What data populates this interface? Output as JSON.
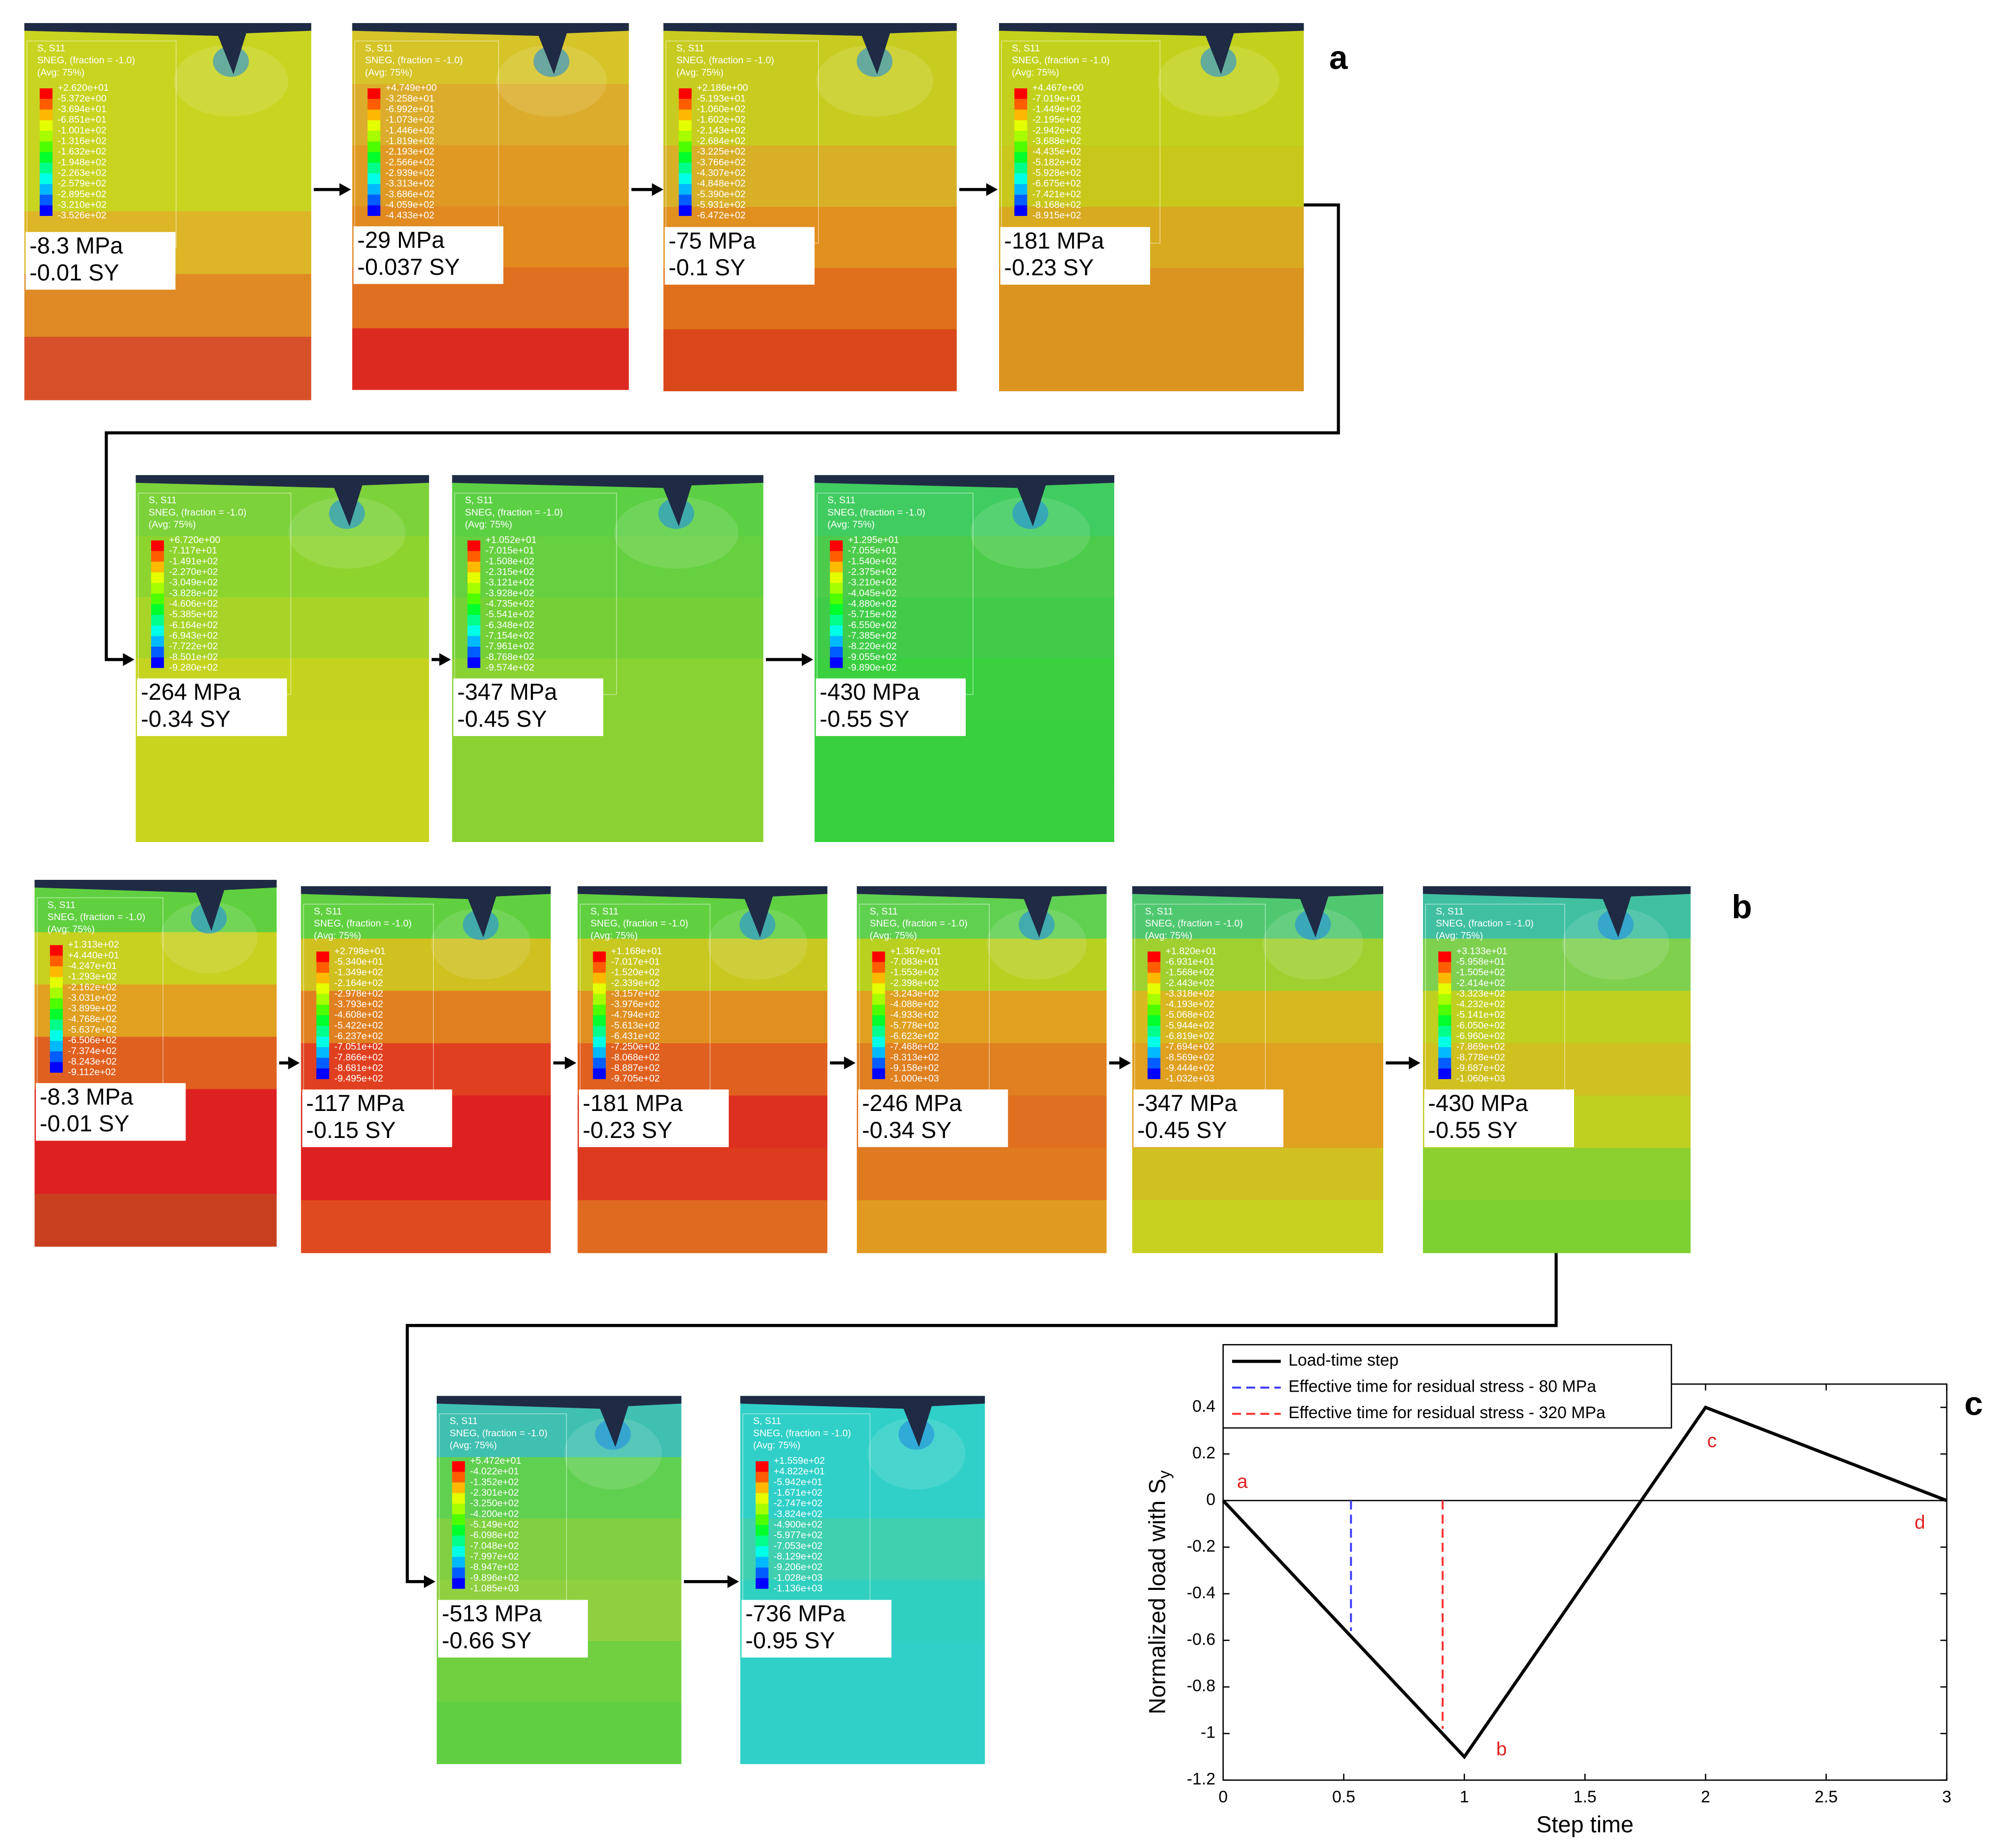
{
  "legend_header": [
    "S, S11",
    "SNEG, (fraction = -1.0)",
    "(Avg: 75%)"
  ],
  "legend_colors": [
    "#ff0000",
    "#ff5d00",
    "#ffb900",
    "#e4ff00",
    "#a6ff00",
    "#4dff00",
    "#00ff2b",
    "#00ff8a",
    "#00ffe6",
    "#00b9ff",
    "#005dff",
    "#0000ff"
  ],
  "panel_letters": [
    "a",
    "b",
    "c"
  ],
  "panels_a": [
    {
      "legend": [
        "+2.620e+01",
        "-5.372e+00",
        "-3.694e+01",
        "-6.851e+01",
        "-1.001e+02",
        "-1.316e+02",
        "-1.632e+02",
        "-1.948e+02",
        "-2.263e+02",
        "-2.579e+02",
        "-2.895e+02",
        "-3.210e+02",
        "-3.526e+02"
      ],
      "label": [
        "-8.3 MPa",
        "-0.01 SY"
      ],
      "bands": [
        "#c9d420",
        "#c9d420",
        "#c9d420",
        "#dcb626",
        "#e08a25",
        "#d8502a"
      ]
    },
    {
      "legend": [
        "+4.749e+00",
        "-3.258e+01",
        "-6.992e+01",
        "-1.073e+02",
        "-1.446e+02",
        "-1.819e+02",
        "-2.193e+02",
        "-2.566e+02",
        "-2.939e+02",
        "-3.313e+02",
        "-3.686e+02",
        "-4.059e+02",
        "-4.433e+02"
      ],
      "label": [
        "-29 MPa",
        "-0.037 SY"
      ],
      "bands": [
        "#d6c428",
        "#dcac2c",
        "#e09a24",
        "#e08a20",
        "#e07020",
        "#dd2a20"
      ]
    },
    {
      "legend": [
        "+2.186e+00",
        "-5.193e+01",
        "-1.060e+02",
        "-1.602e+02",
        "-2.143e+02",
        "-2.684e+02",
        "-3.225e+02",
        "-3.766e+02",
        "-4.307e+02",
        "-4.848e+02",
        "-5.390e+02",
        "-5.931e+02",
        "-6.472e+02"
      ],
      "label": [
        "-75 MPa",
        "-0.1 SY"
      ],
      "bands": [
        "#c8cc20",
        "#c8cc20",
        "#d8b028",
        "#e0901e",
        "#e0701c",
        "#d84818"
      ]
    },
    {
      "legend": [
        "+4.467e+00",
        "-7.019e+01",
        "-1.449e+02",
        "-2.195e+02",
        "-2.942e+02",
        "-3.688e+02",
        "-4.435e+02",
        "-5.182e+02",
        "-5.928e+02",
        "-6.675e+02",
        "-7.421e+02",
        "-8.168e+02",
        "-8.915e+02"
      ],
      "label": [
        "-181 MPa",
        "-0.23 SY"
      ],
      "bands": [
        "#c2d21c",
        "#c2d21c",
        "#c8c81c",
        "#d8aa20",
        "#dc9420",
        "#dc9420"
      ]
    },
    {
      "legend": [
        "+6.720e+00",
        "-7.117e+01",
        "-1.491e+02",
        "-2.270e+02",
        "-3.049e+02",
        "-3.828e+02",
        "-4.606e+02",
        "-5.385e+02",
        "-6.164e+02",
        "-6.943e+02",
        "-7.722e+02",
        "-8.501e+02",
        "-9.280e+02"
      ],
      "label": [
        "-264 MPa",
        "-0.34 SY"
      ],
      "bands": [
        "#7cd23a",
        "#8ed42e",
        "#a8d428",
        "#c4d41e",
        "#c8d41e",
        "#c8d41e"
      ]
    },
    {
      "legend": [
        "+1.052e+01",
        "-7.015e+01",
        "-1.508e+02",
        "-2.315e+02",
        "-3.121e+02",
        "-3.928e+02",
        "-4.735e+02",
        "-5.541e+02",
        "-6.348e+02",
        "-7.154e+02",
        "-7.961e+02",
        "-8.768e+02",
        "-9.574e+02"
      ],
      "label": [
        "-347 MPa",
        "-0.45 SY"
      ],
      "bands": [
        "#5cd044",
        "#66d040",
        "#74d036",
        "#88d232",
        "#8ad232",
        "#8ad232"
      ]
    },
    {
      "legend": [
        "+1.295e+01",
        "-7.055e+01",
        "-1.540e+02",
        "-2.375e+02",
        "-3.210e+02",
        "-4.045e+02",
        "-4.880e+02",
        "-5.715e+02",
        "-6.550e+02",
        "-7.385e+02",
        "-8.220e+02",
        "-9.055e+02",
        "-9.890e+02"
      ],
      "label": [
        "-430 MPa",
        "-0.55 SY"
      ],
      "bands": [
        "#40cc60",
        "#4ccc4a",
        "#40cc48",
        "#3ad040",
        "#38d03c",
        "#38d03c"
      ]
    }
  ],
  "panels_b": [
    {
      "legend": [
        "+1.313e+02",
        "+4.440e+01",
        "-4.247e+01",
        "-1.293e+02",
        "-2.162e+02",
        "-3.031e+02",
        "-3.899e+02",
        "-4.768e+02",
        "-5.637e+02",
        "-6.506e+02",
        "-7.374e+02",
        "-8.243e+02",
        "-9.112e+02"
      ],
      "label": [
        "-8.3 MPa",
        "-0.01 SY"
      ],
      "bands": [
        "#60d040",
        "#c8d020",
        "#e0a020",
        "#e06020",
        "#dd2020",
        "#dd2020",
        "#c84020"
      ]
    },
    {
      "legend": [
        "+2.798e+01",
        "-5.340e+01",
        "-1.349e+02",
        "-2.164e+02",
        "-2.978e+02",
        "-3.793e+02",
        "-4.608e+02",
        "-5.422e+02",
        "-6.237e+02",
        "-7.051e+02",
        "-7.866e+02",
        "-8.681e+02",
        "-9.495e+02"
      ],
      "label": [
        "-117 MPa",
        "-0.15 SY"
      ],
      "bands": [
        "#60d040",
        "#d0c020",
        "#e08020",
        "#e04020",
        "#dd2020",
        "#dd2020",
        "#e04a20"
      ]
    },
    {
      "legend": [
        "+1.168e+01",
        "-7.017e+01",
        "-1.520e+02",
        "-2.339e+02",
        "-3.157e+02",
        "-3.976e+02",
        "-4.794e+02",
        "-5.613e+02",
        "-6.431e+02",
        "-7.250e+02",
        "-8.068e+02",
        "-8.887e+02",
        "-9.705e+02"
      ],
      "label": [
        "-181 MPa",
        "-0.23 SY"
      ],
      "bands": [
        "#60d040",
        "#c8c820",
        "#e09020",
        "#e06020",
        "#dd3020",
        "#dd3a20",
        "#e06a20"
      ]
    },
    {
      "legend": [
        "+1.367e+01",
        "-7.083e+01",
        "-1.553e+02",
        "-2.398e+02",
        "-3.243e+02",
        "-4.088e+02",
        "-4.933e+02",
        "-5.778e+02",
        "-6.623e+02",
        "-7.468e+02",
        "-8.313e+02",
        "-9.158e+02",
        "-1.000e+03"
      ],
      "label": [
        "-246 MPa",
        "-0.34 SY"
      ],
      "bands": [
        "#60d050",
        "#b8d020",
        "#e0a020",
        "#e08020",
        "#e07020",
        "#e07a20",
        "#e09a20"
      ]
    },
    {
      "legend": [
        "+1.820e+01",
        "-6.931e+01",
        "-1.568e+02",
        "-2.443e+02",
        "-3.318e+02",
        "-4.193e+02",
        "-5.068e+02",
        "-5.944e+02",
        "-6.819e+02",
        "-7.694e+02",
        "-8.569e+02",
        "-9.444e+02",
        "-1.032e+03"
      ],
      "label": [
        "-347 MPa",
        "-0.45 SY"
      ],
      "bands": [
        "#50c870",
        "#a0d030",
        "#d8b820",
        "#e0a020",
        "#e0a020",
        "#d0c020",
        "#c8d020"
      ]
    },
    {
      "legend": [
        "+3.133e+01",
        "-5.958e+01",
        "-1.505e+02",
        "-2.414e+02",
        "-3.323e+02",
        "-4.232e+02",
        "-5.141e+02",
        "-6.050e+02",
        "-6.960e+02",
        "-7.869e+02",
        "-8.778e+02",
        "-9.687e+02",
        "-1.060e+03"
      ],
      "label": [
        "-430 MPa",
        "-0.55 SY"
      ],
      "bands": [
        "#40c0a0",
        "#80d050",
        "#c0d020",
        "#d0c020",
        "#c0d020",
        "#8cd030",
        "#7cd030"
      ]
    },
    {
      "legend": [
        "+5.472e+01",
        "-4.022e+01",
        "-1.352e+02",
        "-2.301e+02",
        "-3.250e+02",
        "-4.200e+02",
        "-5.149e+02",
        "-6.098e+02",
        "-7.048e+02",
        "-7.997e+02",
        "-8.947e+02",
        "-9.896e+02",
        "-1.085e+03"
      ],
      "label": [
        "-513 MPa",
        "-0.66 SY"
      ],
      "bands": [
        "#40c0b0",
        "#60d050",
        "#80d040",
        "#90d040",
        "#70d040",
        "#60d040"
      ]
    },
    {
      "legend": [
        "+1.559e+02",
        "+4.822e+01",
        "-5.942e+01",
        "-1.671e+02",
        "-2.747e+02",
        "-3.824e+02",
        "-4.900e+02",
        "-5.977e+02",
        "-7.053e+02",
        "-8.129e+02",
        "-9.206e+02",
        "-1.028e+03",
        "-1.136e+03"
      ],
      "label": [
        "-736 MPa",
        "-0.95 SY"
      ],
      "bands": [
        "#30d0c8",
        "#30d0c8",
        "#40d0b0",
        "#30d0c0",
        "#30d0c8",
        "#30d0c8"
      ]
    }
  ],
  "chart_data": {
    "type": "line",
    "xlabel": "Step time",
    "ylabel": "Normalized load with S",
    "ylabel_subscript": "y",
    "xlim": [
      0,
      3
    ],
    "ylim": [
      -1.2,
      0.5
    ],
    "xticks": [
      0,
      0.5,
      1,
      1.5,
      2,
      2.5,
      3
    ],
    "yticks": [
      -1.2,
      -1,
      -0.8,
      -0.6,
      -0.4,
      -0.2,
      0,
      0.2,
      0.4
    ],
    "series": [
      {
        "name": "Load-time step",
        "color": "#000000",
        "dashed": false,
        "x": [
          0,
          1,
          2,
          3
        ],
        "values": [
          0,
          -1.1,
          0.4,
          0
        ]
      },
      {
        "name": "Effective time for residual stress - 80 MPa",
        "color": "#3a3aff",
        "dashed": true,
        "x": [
          0.53,
          0.53
        ],
        "values": [
          0,
          -0.56
        ]
      },
      {
        "name": "Effective time for residual stress - 320 MPa",
        "color": "#ff3030",
        "dashed": true,
        "x": [
          0.91,
          0.91
        ],
        "values": [
          0,
          -0.98
        ]
      }
    ],
    "annotations": [
      "a",
      "b",
      "c",
      "d"
    ],
    "annotation_color": "#e02020"
  }
}
